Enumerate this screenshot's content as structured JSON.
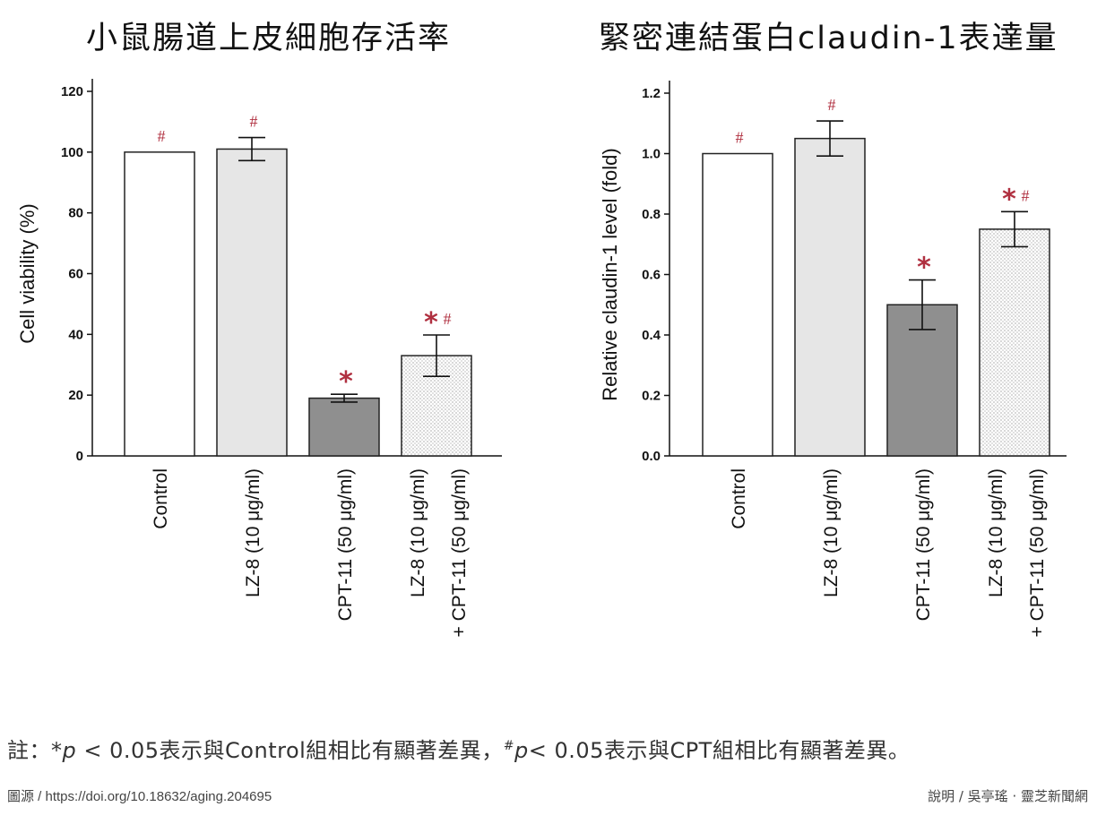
{
  "footnote": {
    "prefix": "註：",
    "star": "*",
    "p": "p",
    "text1": " < 0.05表示與Control組相比有顯著差異，",
    "hash": "#",
    "text2": "< 0.05表示與CPT組相比有顯著差異。"
  },
  "source": "圖源 / https://doi.org/10.18632/aging.204695",
  "credit": "說明 / 吳亭瑤 · 靈芝新聞網",
  "colors": {
    "star": "#b03040",
    "axis": "#111111",
    "bar_edge": "#222222"
  },
  "chart_data": [
    {
      "type": "bar",
      "title": "小鼠腸道上皮細胞存活率",
      "ylabel": "Cell viability (%)",
      "ylim": [
        0,
        120
      ],
      "yticks": [
        0,
        20,
        40,
        60,
        80,
        100,
        120
      ],
      "ytick_labels": [
        "0",
        "20",
        "40",
        "60",
        "80",
        "100",
        "120"
      ],
      "categories": [
        [
          "Control"
        ],
        [
          "LZ-8 (10 μg/ml)"
        ],
        [
          "CPT-11 (50 μg/ml)"
        ],
        [
          "LZ-8 (10 μg/ml)",
          "+ CPT-11 (50 μg/ml)"
        ]
      ],
      "values": [
        100,
        101,
        19,
        33
      ],
      "errors": [
        0,
        3.8,
        1.3,
        6.8
      ],
      "significance": [
        "#",
        "#",
        "*",
        "*#"
      ],
      "fills": [
        "white",
        "#e6e6e6",
        "#8f8f8f",
        "dotted"
      ]
    },
    {
      "type": "bar",
      "title": "緊密連結蛋白claudin-1表達量",
      "ylabel": "Relative  claudin-1 level (fold)",
      "ylim": [
        0,
        1.2
      ],
      "yticks": [
        0,
        0.2,
        0.4,
        0.6,
        0.8,
        1.0,
        1.2
      ],
      "ytick_labels": [
        "0.0",
        "0.2",
        "0.4",
        "0.6",
        "0.8",
        "1.0",
        "1.2"
      ],
      "categories": [
        [
          "Control"
        ],
        [
          "LZ-8 (10 μg/ml)"
        ],
        [
          "CPT-11 (50 μg/ml)"
        ],
        [
          "LZ-8 (10 μg/ml)",
          "+ CPT-11 (50 μg/ml)"
        ]
      ],
      "values": [
        1.0,
        1.05,
        0.5,
        0.75
      ],
      "errors": [
        0,
        0.058,
        0.082,
        0.058
      ],
      "significance": [
        "#",
        "#",
        "*",
        "*#"
      ],
      "fills": [
        "white",
        "#e6e6e6",
        "#8f8f8f",
        "dotted"
      ]
    }
  ]
}
